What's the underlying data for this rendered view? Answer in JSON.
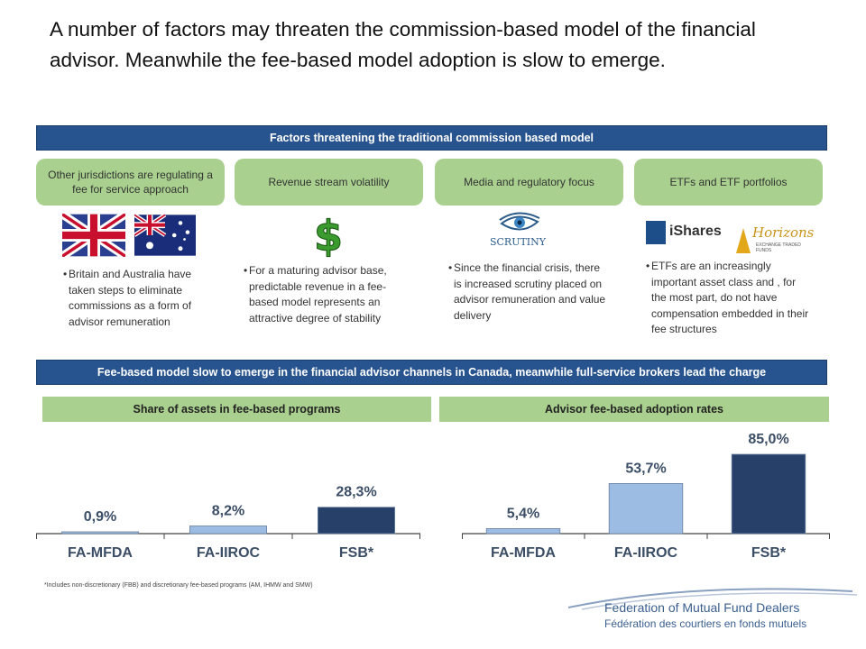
{
  "title": "A number of factors may threaten the commission-based model of the financial advisor. Meanwhile the fee-based model adoption is slow to emerge.",
  "band1": "Factors threatening the traditional commission based model",
  "band2": "Fee-based model slow to emerge in the financial advisor channels in Canada, meanwhile full-service brokers lead the charge",
  "factors": [
    {
      "label": "Other jurisdictions are regulating a fee for service approach",
      "bullet": "Britain and Australia have taken steps to eliminate commissions as a form of advisor remuneration",
      "icon": "uk-australia-flags-icon"
    },
    {
      "label": "Revenue stream volatility",
      "bullet": "For a maturing advisor base, predictable revenue in a fee-based model represents an attractive degree of stability",
      "icon": "dollar-sign-icon"
    },
    {
      "label": "Media and regulatory focus",
      "bullet": "Since the financial crisis, there is increased scrutiny placed on advisor remuneration and value delivery",
      "icon": "scrutiny-eye-icon",
      "icon_text": "SCRUTINY"
    },
    {
      "label": "ETFs and ETF portfolios",
      "bullet": "ETFs are an increasingly important asset class and , for the most part, do not have compensation embedded in their fee structures",
      "icon": "etf-logos-icon",
      "ishares_text": "iShares",
      "horizons_text": "Horizons",
      "horizons_sub": "EXCHANGE TRADED FUNDS"
    }
  ],
  "colors": {
    "band": "#27538e",
    "pill": "#a9d08e",
    "bar_light": "#9dbce3",
    "bar_dark": "#27406a"
  },
  "chart_data": [
    {
      "type": "bar",
      "title": "Share of assets in fee-based programs",
      "categories": [
        "FA-MFDA",
        "FA-IIROC",
        "FSB*"
      ],
      "values": [
        0.9,
        8.2,
        28.3
      ],
      "value_labels": [
        "0,9%",
        "8,2%",
        "28,3%"
      ],
      "ylim": [
        0,
        85
      ],
      "bar_colors": [
        "#9dbce3",
        "#9dbce3",
        "#27406a"
      ]
    },
    {
      "type": "bar",
      "title": "Advisor fee-based adoption rates",
      "categories": [
        "FA-MFDA",
        "FA-IIROC",
        "FSB*"
      ],
      "values": [
        5.4,
        53.7,
        85.0
      ],
      "value_labels": [
        "5,4%",
        "53,7%",
        "85,0%"
      ],
      "ylim": [
        0,
        85
      ],
      "bar_colors": [
        "#9dbce3",
        "#9dbce3",
        "#27406a"
      ]
    }
  ],
  "footnote": "*Includes non-discretionary (FBB) and discretionary fee-based programs (AM, IHMW and SMW)",
  "logo": {
    "line1": "Federation of Mutual Fund Dealers",
    "line2": "Fédération des courtiers en fonds mutuels"
  }
}
